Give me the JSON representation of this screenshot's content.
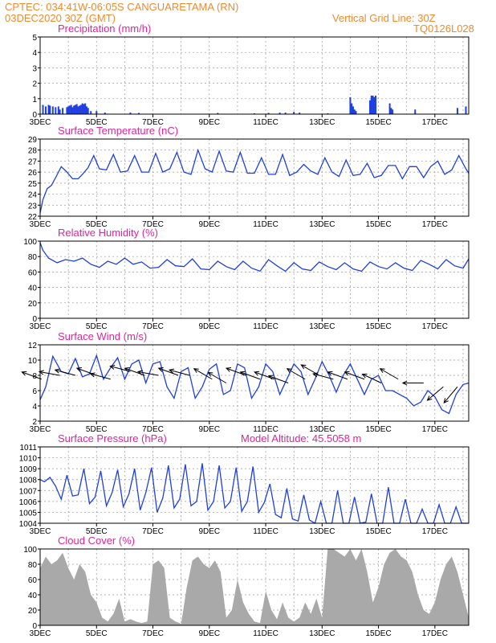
{
  "header": {
    "line1": "CPTEC:   034:41W-06:05S   CANGUARETAMA (RN)",
    "line2": "03DEC2020 30Z (GMT)",
    "grid_note": "Vertical Grid Line: 30Z",
    "code": "TQ0126L028"
  },
  "colors": {
    "header": "#f08a2e",
    "title": "#e0249a",
    "series": "#1f3fe0",
    "cloud": "#a9a9a9",
    "wind_arrow": "#000000",
    "grid": "#999999",
    "axes": "#000000"
  },
  "x_axis": {
    "tick_labels": [
      "3DEC",
      "5DEC",
      "7DEC",
      "9DEC",
      "11DEC",
      "13DEC",
      "15DEC",
      "17DEC"
    ],
    "tick_days": [
      0,
      2,
      4,
      6,
      8,
      10,
      12,
      14
    ],
    "range_days": [
      0,
      15.2
    ],
    "start_label": "3DEC2020"
  },
  "chart_data": [
    {
      "id": "precip",
      "type": "bar",
      "title": "Precipitation (mm/h)",
      "ylim": [
        0,
        5
      ],
      "yticks": [
        0,
        1,
        2,
        3,
        4,
        5
      ],
      "grid": true,
      "x_days": [
        0.1,
        0.2,
        0.3,
        0.35,
        0.45,
        0.55,
        0.65,
        0.7,
        0.8,
        0.95,
        1.0,
        1.05,
        1.1,
        1.15,
        1.2,
        1.25,
        1.3,
        1.35,
        1.4,
        1.45,
        1.5,
        1.55,
        1.6,
        1.65,
        1.7,
        1.8,
        2.0,
        2.3,
        3.2,
        3.5,
        6.3,
        7.6,
        8.1,
        8.5,
        8.7,
        9.0,
        9.2,
        10.2,
        11.0,
        11.05,
        11.1,
        11.15,
        11.2,
        11.7,
        11.75,
        11.8,
        11.85,
        11.9,
        12.4,
        12.45,
        12.5,
        13.3,
        14.8,
        15.1
      ],
      "values": [
        0.6,
        0.5,
        0.6,
        0.55,
        0.5,
        0.45,
        0.5,
        0.3,
        0.4,
        0.45,
        0.5,
        0.55,
        0.6,
        0.45,
        0.55,
        0.6,
        0.65,
        0.5,
        0.55,
        0.6,
        0.7,
        0.65,
        0.7,
        0.5,
        0.4,
        0.2,
        0.2,
        0.1,
        0.1,
        0.08,
        0.08,
        0.05,
        0.08,
        0.1,
        0.1,
        0.15,
        0.1,
        0.05,
        1.1,
        0.7,
        0.5,
        0.3,
        0.2,
        0.9,
        1.2,
        1.2,
        1.1,
        1.2,
        0.7,
        0.4,
        0.3,
        0.3,
        0.4,
        0.5
      ]
    },
    {
      "id": "temperature",
      "type": "line",
      "title": "Surface Temperature (nC)",
      "ylim": [
        22,
        29
      ],
      "yticks": [
        22,
        23,
        24,
        25,
        26,
        27,
        28,
        29
      ],
      "grid": true,
      "x_days": [
        0,
        0.1,
        0.25,
        0.4,
        0.55,
        0.75,
        0.95,
        1.15,
        1.35,
        1.5,
        1.7,
        1.9,
        2.1,
        2.35,
        2.6,
        2.85,
        3.1,
        3.35,
        3.6,
        3.85,
        4.1,
        4.35,
        4.6,
        4.85,
        5.1,
        5.35,
        5.6,
        5.85,
        6.1,
        6.35,
        6.6,
        6.85,
        7.1,
        7.35,
        7.6,
        7.85,
        8.1,
        8.35,
        8.6,
        8.85,
        9.1,
        9.35,
        9.6,
        9.85,
        10.1,
        10.35,
        10.6,
        10.85,
        11.1,
        11.35,
        11.6,
        11.85,
        12.1,
        12.35,
        12.6,
        12.85,
        13.1,
        13.35,
        13.6,
        13.85,
        14.1,
        14.35,
        14.6,
        14.85,
        15.1,
        15.2
      ],
      "values": [
        22.3,
        23.5,
        24.5,
        24.8,
        25.5,
        26.5,
        26.0,
        25.4,
        25.4,
        25.8,
        26.4,
        27.5,
        26.3,
        26.2,
        27.6,
        26.0,
        26.1,
        27.5,
        26.0,
        26.0,
        27.7,
        26.0,
        26.3,
        27.8,
        26.0,
        25.8,
        28.0,
        26.3,
        26.0,
        27.9,
        26.1,
        26.0,
        27.8,
        25.9,
        25.9,
        27.3,
        25.8,
        25.8,
        27.6,
        25.7,
        26.0,
        26.7,
        26.1,
        25.8,
        27.3,
        26.0,
        25.6,
        27.1,
        25.7,
        25.8,
        26.8,
        25.5,
        25.7,
        26.6,
        26.6,
        25.4,
        26.5,
        26.5,
        25.5,
        26.5,
        27.0,
        25.8,
        26.2,
        27.5,
        26.3,
        25.9
      ]
    },
    {
      "id": "humidity",
      "type": "line",
      "title": "Relative Humidity (%)",
      "ylim": [
        0,
        100
      ],
      "yticks": [
        0,
        20,
        40,
        60,
        80,
        100
      ],
      "grid": true,
      "x_days": [
        0,
        0.1,
        0.3,
        0.6,
        0.9,
        1.2,
        1.5,
        1.8,
        2.1,
        2.4,
        2.7,
        3.0,
        3.3,
        3.6,
        3.9,
        4.2,
        4.5,
        4.8,
        5.1,
        5.4,
        5.7,
        6.0,
        6.3,
        6.6,
        6.9,
        7.2,
        7.5,
        7.8,
        8.1,
        8.4,
        8.7,
        9.0,
        9.3,
        9.6,
        9.9,
        10.2,
        10.5,
        10.8,
        11.1,
        11.4,
        11.7,
        12.0,
        12.3,
        12.6,
        12.9,
        13.2,
        13.5,
        13.8,
        14.1,
        14.4,
        14.7,
        15.0,
        15.2
      ],
      "values": [
        98,
        88,
        78,
        72,
        76,
        74,
        78,
        70,
        66,
        74,
        70,
        78,
        70,
        73,
        65,
        66,
        76,
        68,
        67,
        77,
        64,
        63,
        74,
        67,
        63,
        74,
        65,
        61,
        76,
        68,
        61,
        72,
        64,
        62,
        73,
        67,
        63,
        72,
        64,
        61,
        73,
        67,
        64,
        72,
        65,
        62,
        75,
        70,
        64,
        76,
        68,
        65,
        77
      ]
    },
    {
      "id": "wind",
      "type": "line",
      "title": "Surface Wind (m/s)",
      "ylim": [
        2,
        12
      ],
      "yticks": [
        2,
        4,
        6,
        8,
        10,
        12
      ],
      "grid": true,
      "x_days": [
        0,
        0.2,
        0.45,
        0.75,
        1.0,
        1.25,
        1.5,
        1.75,
        2.0,
        2.25,
        2.5,
        2.75,
        3.0,
        3.25,
        3.5,
        3.75,
        4.0,
        4.25,
        4.5,
        4.75,
        5.0,
        5.25,
        5.5,
        5.75,
        6.0,
        6.25,
        6.5,
        6.75,
        7.0,
        7.25,
        7.5,
        7.75,
        8.0,
        8.25,
        8.5,
        8.75,
        9.0,
        9.25,
        9.5,
        9.75,
        10.0,
        10.25,
        10.5,
        10.75,
        11.0,
        11.25,
        11.5,
        11.75,
        12.0,
        12.25,
        12.5,
        12.75,
        13.0,
        13.25,
        13.5,
        13.75,
        14.0,
        14.25,
        14.5,
        14.75,
        15.0,
        15.2
      ],
      "values": [
        4.8,
        6.5,
        10.5,
        8.5,
        8.2,
        10.2,
        7.8,
        8.2,
        10.6,
        7.5,
        9.0,
        10.3,
        7.5,
        9.5,
        10.0,
        7.0,
        9.5,
        9.8,
        6.5,
        5.0,
        8.5,
        9.0,
        5.0,
        6.5,
        8.8,
        9.5,
        5.5,
        6.0,
        9.5,
        9.0,
        5.0,
        6.5,
        9.5,
        8.5,
        5.5,
        7.5,
        9.5,
        8.5,
        5.5,
        7.5,
        9.8,
        8.0,
        5.8,
        8.0,
        9.5,
        7.5,
        5.5,
        7.5,
        8.0,
        6.0,
        6.0,
        5.5,
        5.0,
        4.0,
        4.5,
        6.0,
        5.2,
        3.5,
        3.0,
        5.5,
        6.8,
        7.0
      ],
      "arrows_x_days": [
        0.05,
        0.7,
        1.25,
        2.0,
        2.5,
        3.2,
        3.7,
        4.2,
        4.9,
        5.3,
        6.1,
        6.6,
        7.3,
        7.8,
        8.3,
        8.8,
        9.4,
        9.9,
        10.4,
        10.9,
        11.5,
        12.1,
        12.7,
        13.6,
        14.3,
        14.8
      ],
      "arrows_speed": [
        7.5,
        8.0,
        8.0,
        8.0,
        7.5,
        8.5,
        8.0,
        8.0,
        8.0,
        8.0,
        7.5,
        7.0,
        8.0,
        7.5,
        7.5,
        7.0,
        7.5,
        8.0,
        7.5,
        7.5,
        7.5,
        7.0,
        7.5,
        7.0,
        6.5,
        6.5
      ],
      "arrows_dir_deg": [
        160,
        170,
        165,
        160,
        165,
        165,
        160,
        170,
        160,
        165,
        150,
        150,
        160,
        160,
        160,
        160,
        150,
        150,
        165,
        160,
        160,
        155,
        150,
        180,
        220,
        230
      ]
    },
    {
      "id": "pressure",
      "type": "line",
      "title": "Surface Pressure (hPa)",
      "annotation": "Model Altitude: 45.5058  m",
      "ylim": [
        1004,
        1011
      ],
      "yticks": [
        1004,
        1005,
        1006,
        1007,
        1008,
        1009,
        1010,
        1011
      ],
      "grid": true,
      "x_days": [
        0,
        0.15,
        0.35,
        0.55,
        0.75,
        0.95,
        1.15,
        1.35,
        1.55,
        1.75,
        1.95,
        2.15,
        2.35,
        2.55,
        2.75,
        2.95,
        3.15,
        3.35,
        3.55,
        3.75,
        3.95,
        4.15,
        4.35,
        4.55,
        4.75,
        4.95,
        5.15,
        5.35,
        5.55,
        5.75,
        5.95,
        6.15,
        6.35,
        6.55,
        6.75,
        6.95,
        7.15,
        7.35,
        7.55,
        7.75,
        7.95,
        8.15,
        8.35,
        8.55,
        8.75,
        8.95,
        9.15,
        9.35,
        9.55,
        9.75,
        9.95,
        10.15,
        10.35,
        10.55,
        10.75,
        10.95,
        11.15,
        11.35,
        11.55,
        11.75,
        11.95,
        12.15,
        12.35,
        12.55,
        12.75,
        12.95,
        13.15,
        13.35,
        13.55,
        13.75,
        13.95,
        14.15,
        14.35,
        14.55,
        14.75,
        14.95,
        15.2
      ],
      "values": [
        1008.0,
        1007.8,
        1008.2,
        1007.4,
        1006.2,
        1008.4,
        1006.5,
        1006.6,
        1009.0,
        1005.8,
        1006.4,
        1008.8,
        1005.6,
        1006.8,
        1008.9,
        1005.5,
        1006.7,
        1009.0,
        1005.2,
        1006.8,
        1009.1,
        1005.0,
        1006.3,
        1009.3,
        1005.4,
        1006.2,
        1009.4,
        1005.6,
        1006.0,
        1009.5,
        1005.2,
        1006.0,
        1009.3,
        1005.4,
        1006.0,
        1009.1,
        1005.1,
        1006.0,
        1009.2,
        1005.0,
        1005.9,
        1007.6,
        1004.8,
        1004.5,
        1007.2,
        1004.4,
        1004.2,
        1006.6,
        1004.3,
        1004.0,
        1006.0,
        1004.0,
        1004.0,
        1007.0,
        1004.0,
        1004.0,
        1006.4,
        1004.0,
        1004.1,
        1006.7,
        1004.0,
        1004.0,
        1007.3,
        1004.0,
        1004.0,
        1006.2,
        1004.0,
        1004.0,
        1005.3,
        1004.0,
        1004.0,
        1005.7,
        1004.0,
        1004.0,
        1005.5,
        1004.0,
        1004.0
      ]
    },
    {
      "id": "cloud",
      "type": "area",
      "title": "Cloud Cover (%)",
      "ylim": [
        0,
        100
      ],
      "yticks": [
        0,
        20,
        40,
        60,
        80,
        100
      ],
      "grid": true,
      "x_days": [
        0,
        0.2,
        0.4,
        0.6,
        0.8,
        1.0,
        1.2,
        1.4,
        1.6,
        1.8,
        2.0,
        2.2,
        2.4,
        2.6,
        2.8,
        3.0,
        3.2,
        3.4,
        3.6,
        3.8,
        4.0,
        4.2,
        4.4,
        4.6,
        4.8,
        5.0,
        5.2,
        5.4,
        5.6,
        5.8,
        6.0,
        6.2,
        6.4,
        6.6,
        6.8,
        7.0,
        7.2,
        7.4,
        7.6,
        7.8,
        8.0,
        8.2,
        8.4,
        8.6,
        8.8,
        9.0,
        9.2,
        9.4,
        9.6,
        9.8,
        10.0,
        10.2,
        10.4,
        10.6,
        10.8,
        11.0,
        11.2,
        11.4,
        11.6,
        11.8,
        12.0,
        12.2,
        12.4,
        12.6,
        12.8,
        13.0,
        13.2,
        13.4,
        13.6,
        13.8,
        14.0,
        14.2,
        14.4,
        14.6,
        14.8,
        15.0,
        15.2
      ],
      "values": [
        75,
        90,
        80,
        85,
        95,
        75,
        60,
        80,
        70,
        40,
        30,
        10,
        5,
        15,
        35,
        5,
        8,
        5,
        3,
        5,
        80,
        85,
        75,
        10,
        5,
        2,
        50,
        85,
        90,
        80,
        75,
        85,
        70,
        10,
        20,
        60,
        30,
        15,
        5,
        3,
        45,
        20,
        8,
        30,
        10,
        5,
        10,
        30,
        15,
        35,
        10,
        100,
        100,
        95,
        90,
        100,
        85,
        100,
        70,
        30,
        50,
        80,
        95,
        100,
        90,
        85,
        70,
        40,
        20,
        15,
        30,
        60,
        80,
        90,
        70,
        40,
        10
      ]
    }
  ]
}
